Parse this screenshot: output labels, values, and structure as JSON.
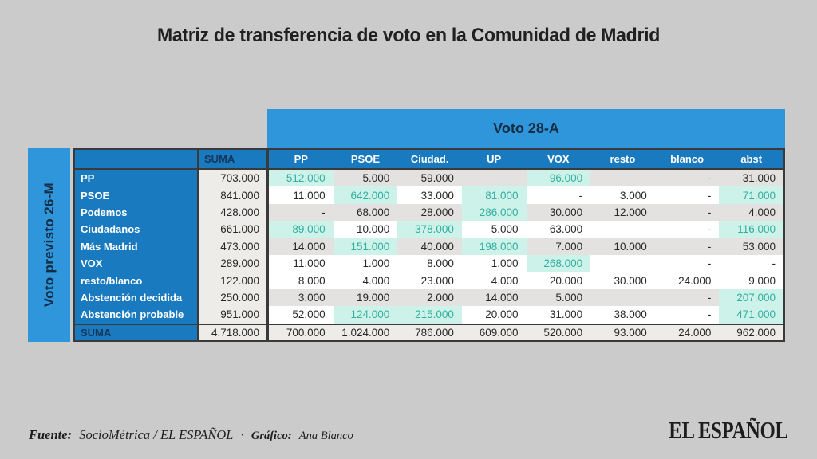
{
  "chart_data": {
    "type": "table",
    "title": "Matriz de transferencia de voto en la Comunidad de Madrid",
    "col_group": "Voto 28-A",
    "row_group": "Voto previsto 26-M",
    "columns": [
      "SUMA",
      "PP",
      "PSOE",
      "Ciudad.",
      "UP",
      "VOX",
      "resto",
      "blanco",
      "abst"
    ],
    "rows": [
      {
        "label": "PP",
        "suma": "703.000",
        "shade": true,
        "cells": [
          {
            "v": "512.000",
            "hl": true
          },
          {
            "v": "5.000"
          },
          {
            "v": "59.000"
          },
          {
            "v": ""
          },
          {
            "v": "96.000",
            "hl": true
          },
          {
            "v": ""
          },
          {
            "v": "-"
          },
          {
            "v": "31.000"
          }
        ]
      },
      {
        "label": "PSOE",
        "suma": "841.000",
        "shade": false,
        "cells": [
          {
            "v": "11.000"
          },
          {
            "v": "642.000",
            "hl": true
          },
          {
            "v": "33.000"
          },
          {
            "v": "81.000",
            "hl": true
          },
          {
            "v": "-"
          },
          {
            "v": "3.000"
          },
          {
            "v": "-"
          },
          {
            "v": "71.000",
            "hl": true
          }
        ]
      },
      {
        "label": "Podemos",
        "suma": "428.000",
        "shade": true,
        "cells": [
          {
            "v": "-"
          },
          {
            "v": "68.000"
          },
          {
            "v": "28.000"
          },
          {
            "v": "286.000",
            "hl": true
          },
          {
            "v": "30.000"
          },
          {
            "v": "12.000"
          },
          {
            "v": "-"
          },
          {
            "v": "4.000"
          }
        ]
      },
      {
        "label": "Ciudadanos",
        "suma": "661.000",
        "shade": false,
        "cells": [
          {
            "v": "89.000",
            "hl": true
          },
          {
            "v": "10.000"
          },
          {
            "v": "378.000",
            "hl": true
          },
          {
            "v": "5.000"
          },
          {
            "v": "63.000"
          },
          {
            "v": ""
          },
          {
            "v": "-"
          },
          {
            "v": "116.000",
            "hl": true
          }
        ]
      },
      {
        "label": "Más Madrid",
        "suma": "473.000",
        "shade": true,
        "cells": [
          {
            "v": "14.000"
          },
          {
            "v": "151.000",
            "hl": true
          },
          {
            "v": "40.000"
          },
          {
            "v": "198.000",
            "hl": true
          },
          {
            "v": "7.000"
          },
          {
            "v": "10.000"
          },
          {
            "v": "-"
          },
          {
            "v": "53.000"
          }
        ]
      },
      {
        "label": "VOX",
        "suma": "289.000",
        "shade": false,
        "cells": [
          {
            "v": "11.000"
          },
          {
            "v": "1.000"
          },
          {
            "v": "8.000"
          },
          {
            "v": "1.000"
          },
          {
            "v": "268.000",
            "hl": true
          },
          {
            "v": ""
          },
          {
            "v": "-"
          },
          {
            "v": "-"
          }
        ]
      },
      {
        "label": "resto/blanco",
        "suma": "122.000",
        "shade": false,
        "cells": [
          {
            "v": "8.000"
          },
          {
            "v": "4.000"
          },
          {
            "v": "23.000"
          },
          {
            "v": "4.000"
          },
          {
            "v": "20.000"
          },
          {
            "v": "30.000"
          },
          {
            "v": "24.000"
          },
          {
            "v": "9.000"
          }
        ]
      },
      {
        "label": "Abstención decidida",
        "suma": "250.000",
        "shade": true,
        "cells": [
          {
            "v": "3.000"
          },
          {
            "v": "19.000"
          },
          {
            "v": "2.000"
          },
          {
            "v": "14.000"
          },
          {
            "v": "5.000"
          },
          {
            "v": ""
          },
          {
            "v": "-"
          },
          {
            "v": "207.000",
            "hl": true
          }
        ]
      },
      {
        "label": "Abstención probable",
        "suma": "951.000",
        "shade": false,
        "cells": [
          {
            "v": "52.000"
          },
          {
            "v": "124.000",
            "hl": true
          },
          {
            "v": "215.000",
            "hl": true
          },
          {
            "v": "20.000"
          },
          {
            "v": "31.000"
          },
          {
            "v": "38.000"
          },
          {
            "v": "-"
          },
          {
            "v": "471.000",
            "hl": true
          }
        ]
      }
    ],
    "total_row": {
      "label": "SUMA",
      "suma": "4.718.000",
      "cells": [
        "700.000",
        "1.024.000",
        "786.000",
        "609.000",
        "520.000",
        "93.000",
        "24.000",
        "962.000"
      ]
    }
  },
  "footer": {
    "source_label": "Fuente:",
    "source_value": "SocioMétrica / EL ESPAÑOL",
    "separator": "·",
    "credit_label": "Gráfico:",
    "credit_value": "Ana Blanco"
  },
  "logo": {
    "text": "EL ESPAÑOL"
  },
  "colors": {
    "page_bg": "#cbcbcb",
    "band_blue": "#2f96db",
    "header_blue": "#1a7abf",
    "header_text": "#ffffff",
    "band_label_text": "#152c42",
    "navy_text": "#16365c",
    "cell_text": "#282828",
    "row_gray": "#e3e2e1",
    "row_white": "#ffffff",
    "suma_bg": "#edece9",
    "teal_bg": "#cdf2ea",
    "teal_text": "#33ae9f",
    "border_dark": "#3a3a3a",
    "title_text": "#202020",
    "footer_text": "#1e1e1e",
    "logo_text": "#1d1d1d"
  }
}
